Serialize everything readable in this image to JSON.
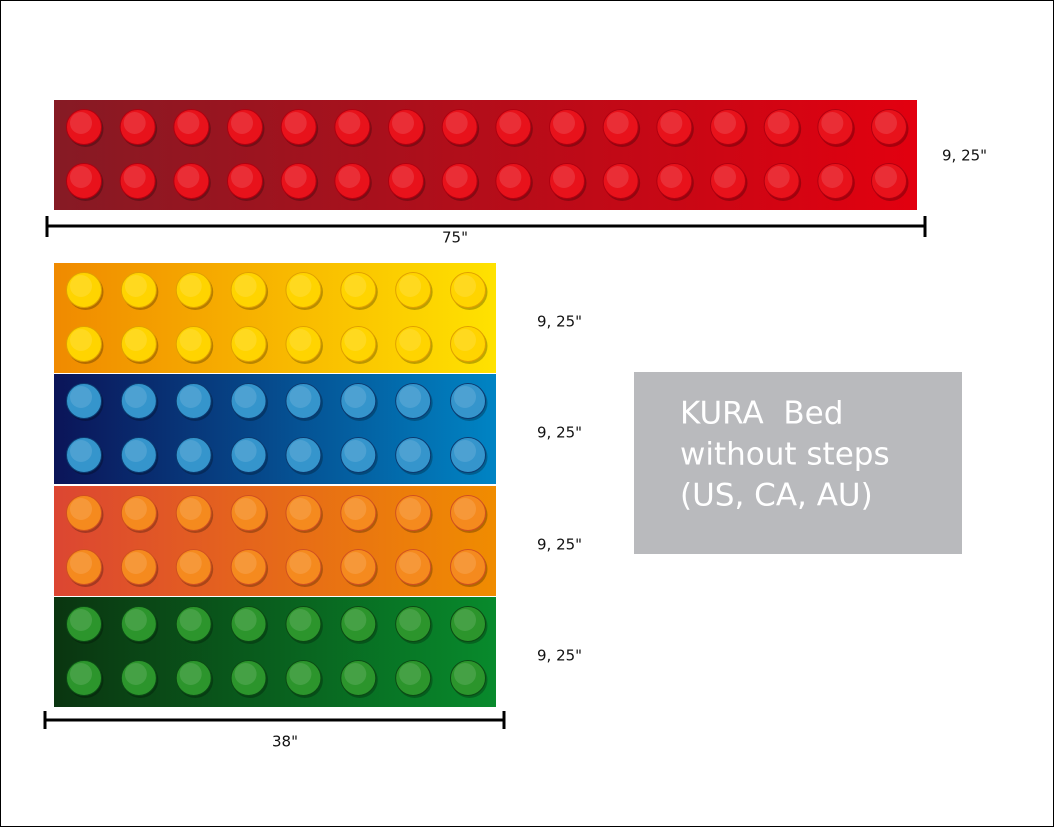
{
  "top_brick": {
    "height_label": "9, 25\"",
    "width_label": "75\""
  },
  "stack_bricks": [
    {
      "height_label": "9, 25\""
    },
    {
      "height_label": "9, 25\""
    },
    {
      "height_label": "9, 25\""
    },
    {
      "height_label": "9, 25\""
    }
  ],
  "stack_width_label": "38\"",
  "title": {
    "lines": [
      "KURA  Bed",
      "without steps",
      "(US, CA, AU)"
    ]
  }
}
